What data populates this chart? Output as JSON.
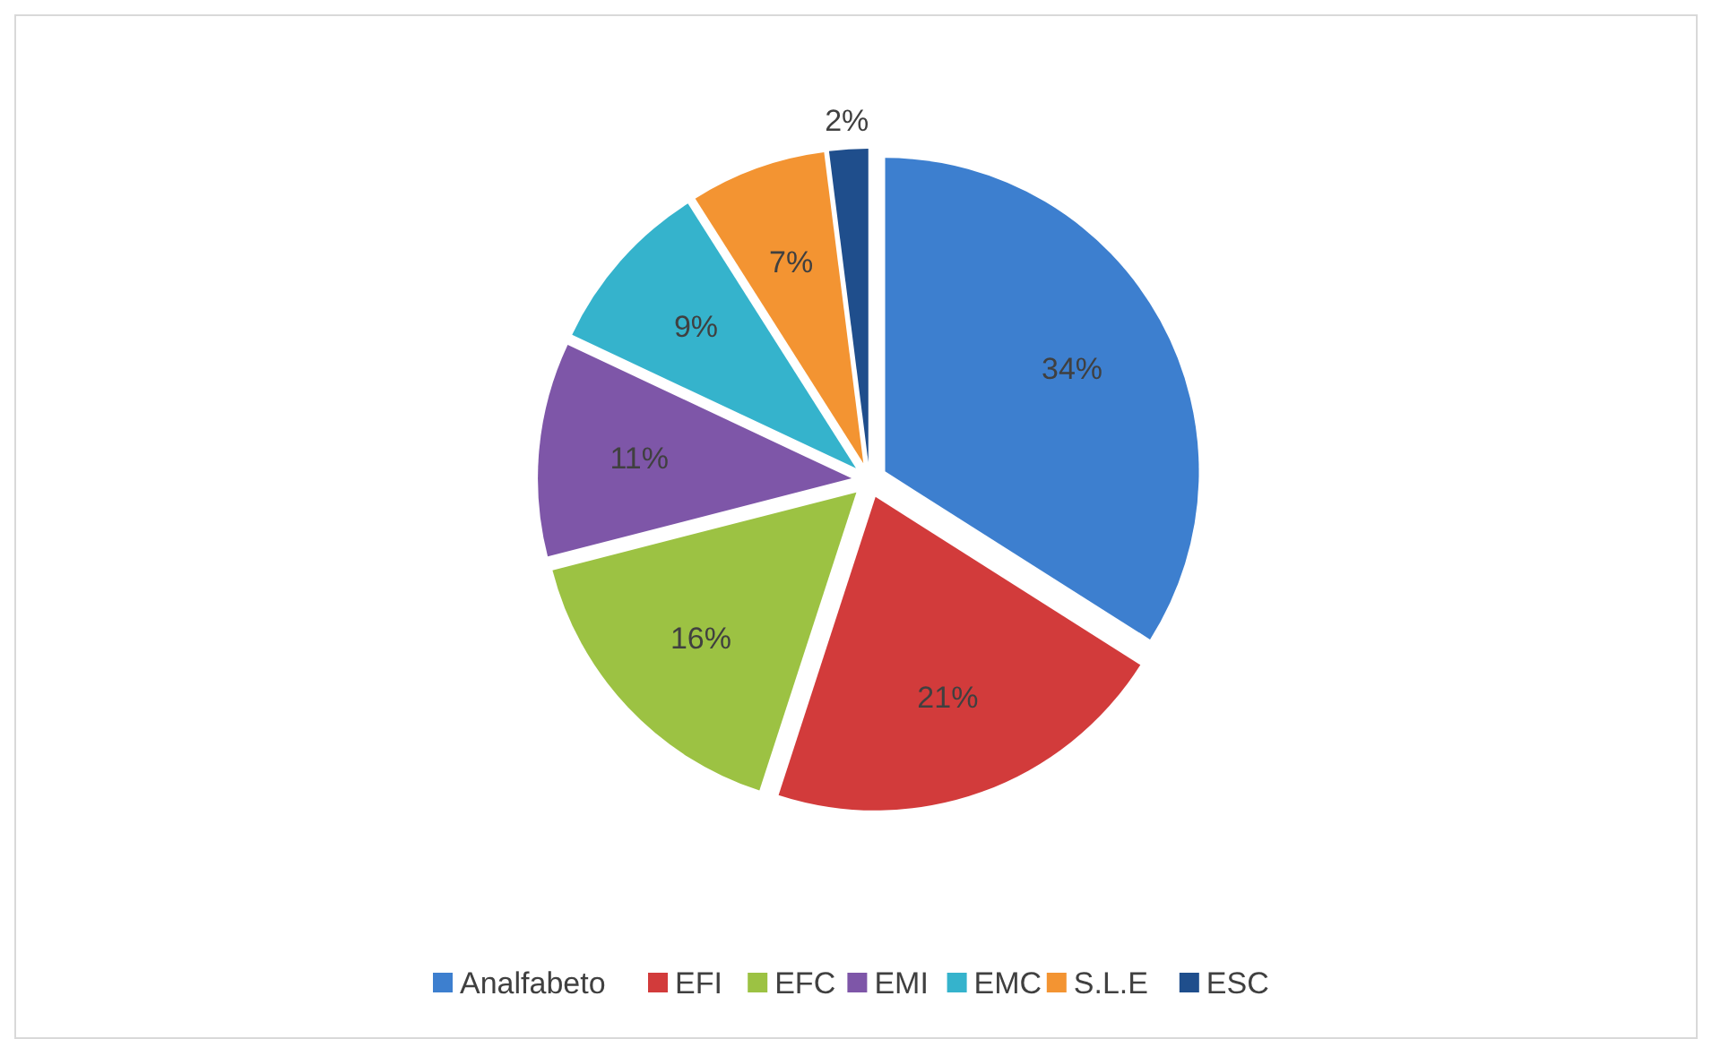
{
  "chart_data": {
    "type": "pie",
    "categories": [
      "Analfabeto",
      "EFI",
      "EFC",
      "EMI",
      "EMC",
      "S.L.E",
      "ESC"
    ],
    "values": [
      34,
      21,
      16,
      11,
      9,
      7,
      2
    ],
    "value_labels": [
      "34%",
      "21%",
      "16%",
      "11%",
      "9%",
      "7%",
      "2%"
    ],
    "colors": [
      "#3d7fcf",
      "#d23b3b",
      "#9cc243",
      "#7e56a8",
      "#35b3cc",
      "#f39432",
      "#1f4e8c"
    ],
    "legend": "bottom"
  }
}
